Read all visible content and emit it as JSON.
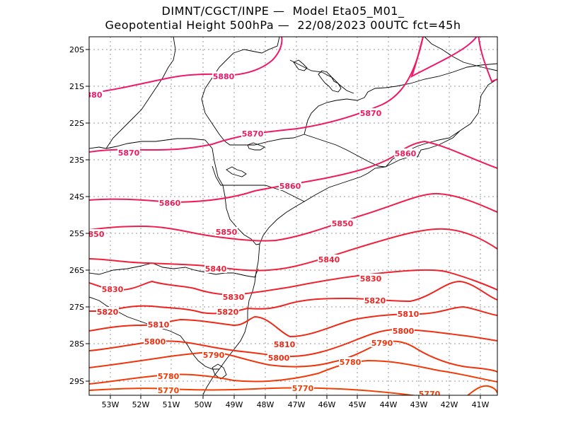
{
  "title": {
    "line1": "DIMNT/CGCT/INPE —  Model Eta05_M01_",
    "line2": "Geopotential Height 500hPa —  22/08/2023 00UTC fct=45h"
  },
  "axes": {
    "x_labels": [
      "53W",
      "52W",
      "51W",
      "50W",
      "49W",
      "48W",
      "47W",
      "46W",
      "45W",
      "44W",
      "43W",
      "42W",
      "41W"
    ],
    "y_labels": [
      "20S",
      "21S",
      "22S",
      "23S",
      "24S",
      "25S",
      "26S",
      "27S",
      "28S",
      "29S"
    ]
  },
  "colors": {
    "coast": "#000000",
    "grid": "#999999",
    "contour_5880": "#f0186c",
    "contour_5870": "#f01a62",
    "contour_5860": "#f01c58",
    "contour_5850": "#f01e4a",
    "contour_5840": "#f0203a",
    "contour_5830": "#f0222c",
    "contour_5820": "#f0241e",
    "contour_5810": "#f02816",
    "contour_5800": "#f02e10",
    "contour_5790": "#f0340c",
    "contour_5780": "#f03a08",
    "contour_5770": "#f04004"
  },
  "contours": [
    {
      "value": 5880,
      "labels": [
        "5880",
        "880"
      ]
    },
    {
      "value": 5870,
      "labels": [
        "5870",
        "5870",
        "5870"
      ]
    },
    {
      "value": 5860,
      "labels": [
        "5860",
        "5860",
        "5860"
      ]
    },
    {
      "value": 5850,
      "labels": [
        "5850",
        "5850",
        "850"
      ]
    },
    {
      "value": 5840,
      "labels": [
        "5840",
        "5840"
      ]
    },
    {
      "value": 5830,
      "labels": [
        "5830",
        "5830",
        "5830"
      ]
    },
    {
      "value": 5820,
      "labels": [
        "5820",
        "5820",
        "5820"
      ]
    },
    {
      "value": 5810,
      "labels": [
        "5810",
        "5810",
        "5810"
      ]
    },
    {
      "value": 5800,
      "labels": [
        "5800",
        "5800",
        "5800"
      ]
    },
    {
      "value": 5790,
      "labels": [
        "5790",
        "5790"
      ]
    },
    {
      "value": 5780,
      "labels": [
        "5780",
        "5780"
      ]
    },
    {
      "value": 5770,
      "labels": [
        "5770",
        "5770",
        "5770"
      ]
    }
  ]
}
